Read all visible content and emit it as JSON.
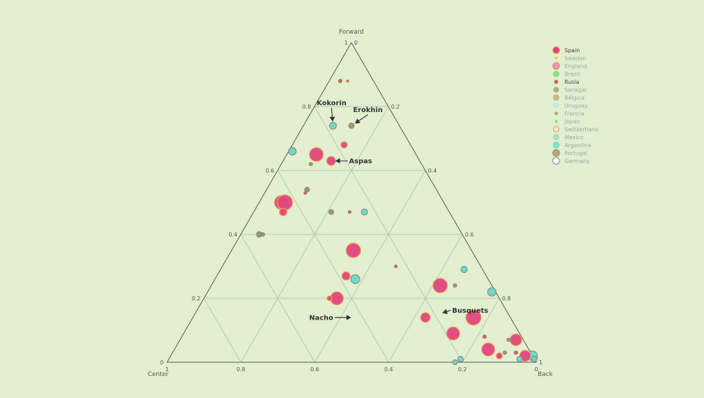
{
  "colors": {
    "background": "#e2efd0",
    "triangle": "#555555",
    "grid": "#b8c9a6",
    "tick": "#555555",
    "annotation": "#333333"
  },
  "chart_data": {
    "type": "ternary-scatter",
    "axes": {
      "a": {
        "title": "Forward",
        "ticks": [
          "0",
          "0.2",
          "0.4",
          "0.6",
          "0.8",
          "1"
        ]
      },
      "b": {
        "title": "Center",
        "ticks": [
          "0",
          "0.2",
          "0.4",
          "0.6",
          "0.8",
          "1"
        ]
      },
      "c": {
        "title": "Back",
        "ticks": [
          "0",
          "0.2",
          "0.4",
          "0.6",
          "0.8",
          "1"
        ]
      }
    },
    "grid": true,
    "legend_placement": "top-right",
    "legend": [
      {
        "label": "Spain",
        "color": "#e0447c",
        "stroke": "#f0a050",
        "size": 5,
        "visible": true
      },
      {
        "label": "Sweden",
        "color": "#e8c838",
        "stroke": "#e8c838",
        "size": 1.5,
        "visible": false
      },
      {
        "label": "England",
        "color": "#f07a9a",
        "stroke": "#f07a9a",
        "size": 5,
        "visible": false
      },
      {
        "label": "Brazil",
        "color": "#7ad86a",
        "stroke": "#7ad86a",
        "size": 4,
        "visible": false
      },
      {
        "label": "Rusia",
        "color": "#e05a6a",
        "stroke": "#b07050",
        "size": 2.5,
        "visible": true
      },
      {
        "label": "Senegal",
        "color": "#a0a070",
        "stroke": "#a0a070",
        "size": 3.5,
        "visible": false
      },
      {
        "label": "Bélgica",
        "color": "#b0b080",
        "stroke": "#b0b080",
        "size": 4,
        "visible": false
      },
      {
        "label": "Uruguay",
        "color": "#c8e8e8",
        "stroke": "#c8e8e8",
        "size": 4,
        "visible": false
      },
      {
        "label": "Francia",
        "color": "#a0a070",
        "stroke": "#a0a070",
        "size": 2,
        "visible": false
      },
      {
        "label": "Japan",
        "color": "#7ad86a",
        "stroke": "#7ad86a",
        "size": 1.5,
        "visible": false
      },
      {
        "label": "Switzertland",
        "color": "#f8e8d8",
        "stroke": "#f08070",
        "size": 4,
        "visible": false
      },
      {
        "label": "Mexico",
        "color": "#a8d8a8",
        "stroke": "#a8d8a8",
        "size": 4,
        "visible": false
      },
      {
        "label": "Argentina",
        "color": "#68d8c8",
        "stroke": "#68d8c8",
        "size": 4.5,
        "visible": false
      },
      {
        "label": "Portugal",
        "color": "#a09060",
        "stroke": "#a09060",
        "size": 5,
        "visible": false
      },
      {
        "label": "Germany",
        "color": "#ffffff",
        "stroke": "#888888",
        "size": 5,
        "visible": false
      }
    ],
    "points": [
      {
        "forward": 0.88,
        "center": 0.09,
        "back": 0.03,
        "size": 2.5,
        "fill": "#e05a6a",
        "stroke": "#b07050"
      },
      {
        "forward": 0.88,
        "center": 0.07,
        "back": 0.05,
        "size": 1.5,
        "fill": "#e05a6a",
        "stroke": "#b07050"
      },
      {
        "forward": 0.74,
        "center": 0.18,
        "back": 0.08,
        "size": 5,
        "fill": "#68d8c8",
        "stroke": "#a09060"
      },
      {
        "forward": 0.74,
        "center": 0.13,
        "back": 0.13,
        "size": 4,
        "fill": "#a09060",
        "stroke": "#a09060"
      },
      {
        "forward": 0.68,
        "center": 0.18,
        "back": 0.14,
        "size": 4.5,
        "fill": "#e0447c",
        "stroke": "#e08070"
      },
      {
        "forward": 0.66,
        "center": 0.33,
        "back": 0.01,
        "size": 5.5,
        "fill": "#68d8c8",
        "stroke": "#888888"
      },
      {
        "forward": 0.65,
        "center": 0.27,
        "back": 0.08,
        "size": 10,
        "fill": "#e0447c",
        "stroke": "#f0a050"
      },
      {
        "forward": 0.63,
        "center": 0.24,
        "back": 0.13,
        "size": 6.5,
        "fill": "#e0447c",
        "stroke": "#f0a050"
      },
      {
        "forward": 0.62,
        "center": 0.3,
        "back": 0.08,
        "size": 2.5,
        "fill": "#a09060",
        "stroke": "#a09060"
      },
      {
        "forward": 0.54,
        "center": 0.35,
        "back": 0.11,
        "size": 3.5,
        "fill": "#a09060",
        "stroke": "#888888"
      },
      {
        "forward": 0.53,
        "center": 0.36,
        "back": 0.11,
        "size": 2,
        "fill": "#e05a6a",
        "stroke": "#b07050"
      },
      {
        "forward": 0.5,
        "center": 0.44,
        "back": 0.06,
        "size": 10,
        "fill": "#e0447c",
        "stroke": "#f0a050"
      },
      {
        "forward": 0.5,
        "center": 0.43,
        "back": 0.07,
        "size": 11,
        "fill": "#e0447c",
        "stroke": "#f0a050"
      },
      {
        "forward": 0.47,
        "center": 0.45,
        "back": 0.08,
        "size": 5.5,
        "fill": "#e0447c",
        "stroke": "#f0a050"
      },
      {
        "forward": 0.47,
        "center": 0.32,
        "back": 0.21,
        "size": 3.5,
        "fill": "#a09060",
        "stroke": "#888888"
      },
      {
        "forward": 0.47,
        "center": 0.27,
        "back": 0.26,
        "size": 2,
        "fill": "#e05a6a",
        "stroke": "#b07050"
      },
      {
        "forward": 0.47,
        "center": 0.23,
        "back": 0.3,
        "size": 4.5,
        "fill": "#68d8c8",
        "stroke": "#888888"
      },
      {
        "forward": 0.4,
        "center": 0.55,
        "back": 0.05,
        "size": 4,
        "fill": "#a09060",
        "stroke": "#888888"
      },
      {
        "forward": 0.4,
        "center": 0.54,
        "back": 0.06,
        "size": 2.5,
        "fill": "#a09060",
        "stroke": "#888888"
      },
      {
        "forward": 0.35,
        "center": 0.32,
        "back": 0.33,
        "size": 10.5,
        "fill": "#e0447c",
        "stroke": "#f0a050"
      },
      {
        "forward": 0.3,
        "center": 0.23,
        "back": 0.47,
        "size": 2,
        "fill": "#e05a6a",
        "stroke": "#b07050"
      },
      {
        "forward": 0.29,
        "center": 0.05,
        "back": 0.66,
        "size": 4.5,
        "fill": "#68d8c8",
        "stroke": "#888888"
      },
      {
        "forward": 0.27,
        "center": 0.38,
        "back": 0.35,
        "size": 6,
        "fill": "#e0447c",
        "stroke": "#f0a050"
      },
      {
        "forward": 0.26,
        "center": 0.36,
        "back": 0.38,
        "size": 6.5,
        "fill": "#68d8c8",
        "stroke": "#888888"
      },
      {
        "forward": 0.24,
        "center": 0.14,
        "back": 0.62,
        "size": 10.5,
        "fill": "#e0447c",
        "stroke": "#f0a050"
      },
      {
        "forward": 0.24,
        "center": 0.1,
        "back": 0.66,
        "size": 2.5,
        "fill": "#a09060",
        "stroke": "#888888"
      },
      {
        "forward": 0.22,
        "center": 0.01,
        "back": 0.77,
        "size": 6,
        "fill": "#68d8c8",
        "stroke": "#888888"
      },
      {
        "forward": 0.2,
        "center": 0.44,
        "back": 0.36,
        "size": 9.5,
        "fill": "#e0447c",
        "stroke": "#f0a050"
      },
      {
        "forward": 0.2,
        "center": 0.46,
        "back": 0.34,
        "size": 3.5,
        "fill": "#e0447c",
        "stroke": "#f0a050"
      },
      {
        "forward": 0.14,
        "center": 0.1,
        "back": 0.76,
        "size": 11,
        "fill": "#e0447c",
        "stroke": "#f0a050"
      },
      {
        "forward": 0.14,
        "center": 0.23,
        "back": 0.63,
        "size": 7,
        "fill": "#e0447c",
        "stroke": "#f0a050"
      },
      {
        "forward": 0.09,
        "center": 0.18,
        "back": 0.73,
        "size": 9.5,
        "fill": "#e0447c",
        "stroke": "#f0a050"
      },
      {
        "forward": 0.08,
        "center": 0.1,
        "back": 0.82,
        "size": 2.5,
        "fill": "#e05a6a",
        "stroke": "#b07050"
      },
      {
        "forward": 0.07,
        "center": 0.02,
        "back": 0.91,
        "size": 8.5,
        "fill": "#e0447c",
        "stroke": "#f0a050"
      },
      {
        "forward": 0.07,
        "center": 0.04,
        "back": 0.89,
        "size": 2.5,
        "fill": "#a09060",
        "stroke": "#888888"
      },
      {
        "forward": 0.04,
        "center": 0.11,
        "back": 0.85,
        "size": 9.5,
        "fill": "#e0447c",
        "stroke": "#f0a050"
      },
      {
        "forward": 0.03,
        "center": 0.04,
        "back": 0.93,
        "size": 2.5,
        "fill": "#e05a6a",
        "stroke": "#b07050"
      },
      {
        "forward": 0.03,
        "center": 0.07,
        "back": 0.9,
        "size": 2.5,
        "fill": "#a09060",
        "stroke": "#888888"
      },
      {
        "forward": 0.02,
        "center": 0.0,
        "back": 0.98,
        "size": 7,
        "fill": "#68d8c8",
        "stroke": "#888888"
      },
      {
        "forward": 0.02,
        "center": 0.09,
        "back": 0.89,
        "size": 4.5,
        "fill": "#e0447c",
        "stroke": "#f0a050"
      },
      {
        "forward": 0.02,
        "center": 0.02,
        "back": 0.96,
        "size": 8,
        "fill": "#e0447c",
        "stroke": "#f0a050"
      },
      {
        "forward": 0.01,
        "center": 0.2,
        "back": 0.79,
        "size": 4,
        "fill": "#68d8c8",
        "stroke": "#888888"
      },
      {
        "forward": 0.01,
        "center": 0.0,
        "back": 0.99,
        "size": 4,
        "fill": "#68d8c8",
        "stroke": "#888888"
      },
      {
        "forward": 0.01,
        "center": 0.04,
        "back": 0.95,
        "size": 4,
        "fill": "#68d8c8",
        "stroke": "#888888"
      },
      {
        "forward": 0.0,
        "center": 0.22,
        "back": 0.78,
        "size": 3.5,
        "fill": "#68d8c8",
        "stroke": "#888888"
      }
    ],
    "annotations": [
      {
        "text": "Kokorin",
        "forward": 0.74,
        "center": 0.18,
        "back": 0.08,
        "text_dx": -2,
        "text_dy": -30,
        "anchor": "middle"
      },
      {
        "text": "Erokhin",
        "forward": 0.74,
        "center": 0.13,
        "back": 0.13,
        "text_dx": 24,
        "text_dy": -20,
        "anchor": "middle"
      },
      {
        "text": "Aspas",
        "forward": 0.63,
        "center": 0.24,
        "back": 0.13,
        "text_dx": 26,
        "text_dy": 0,
        "anchor": "start"
      },
      {
        "text": "Nacho",
        "forward": 0.14,
        "center": 0.42,
        "back": 0.44,
        "text_dx": -32,
        "text_dy": 0,
        "anchor": "end"
      },
      {
        "text": "Busquets",
        "forward": 0.15,
        "center": 0.19,
        "back": 0.66,
        "text_dx": 20,
        "text_dy": -6,
        "anchor": "start"
      }
    ]
  }
}
